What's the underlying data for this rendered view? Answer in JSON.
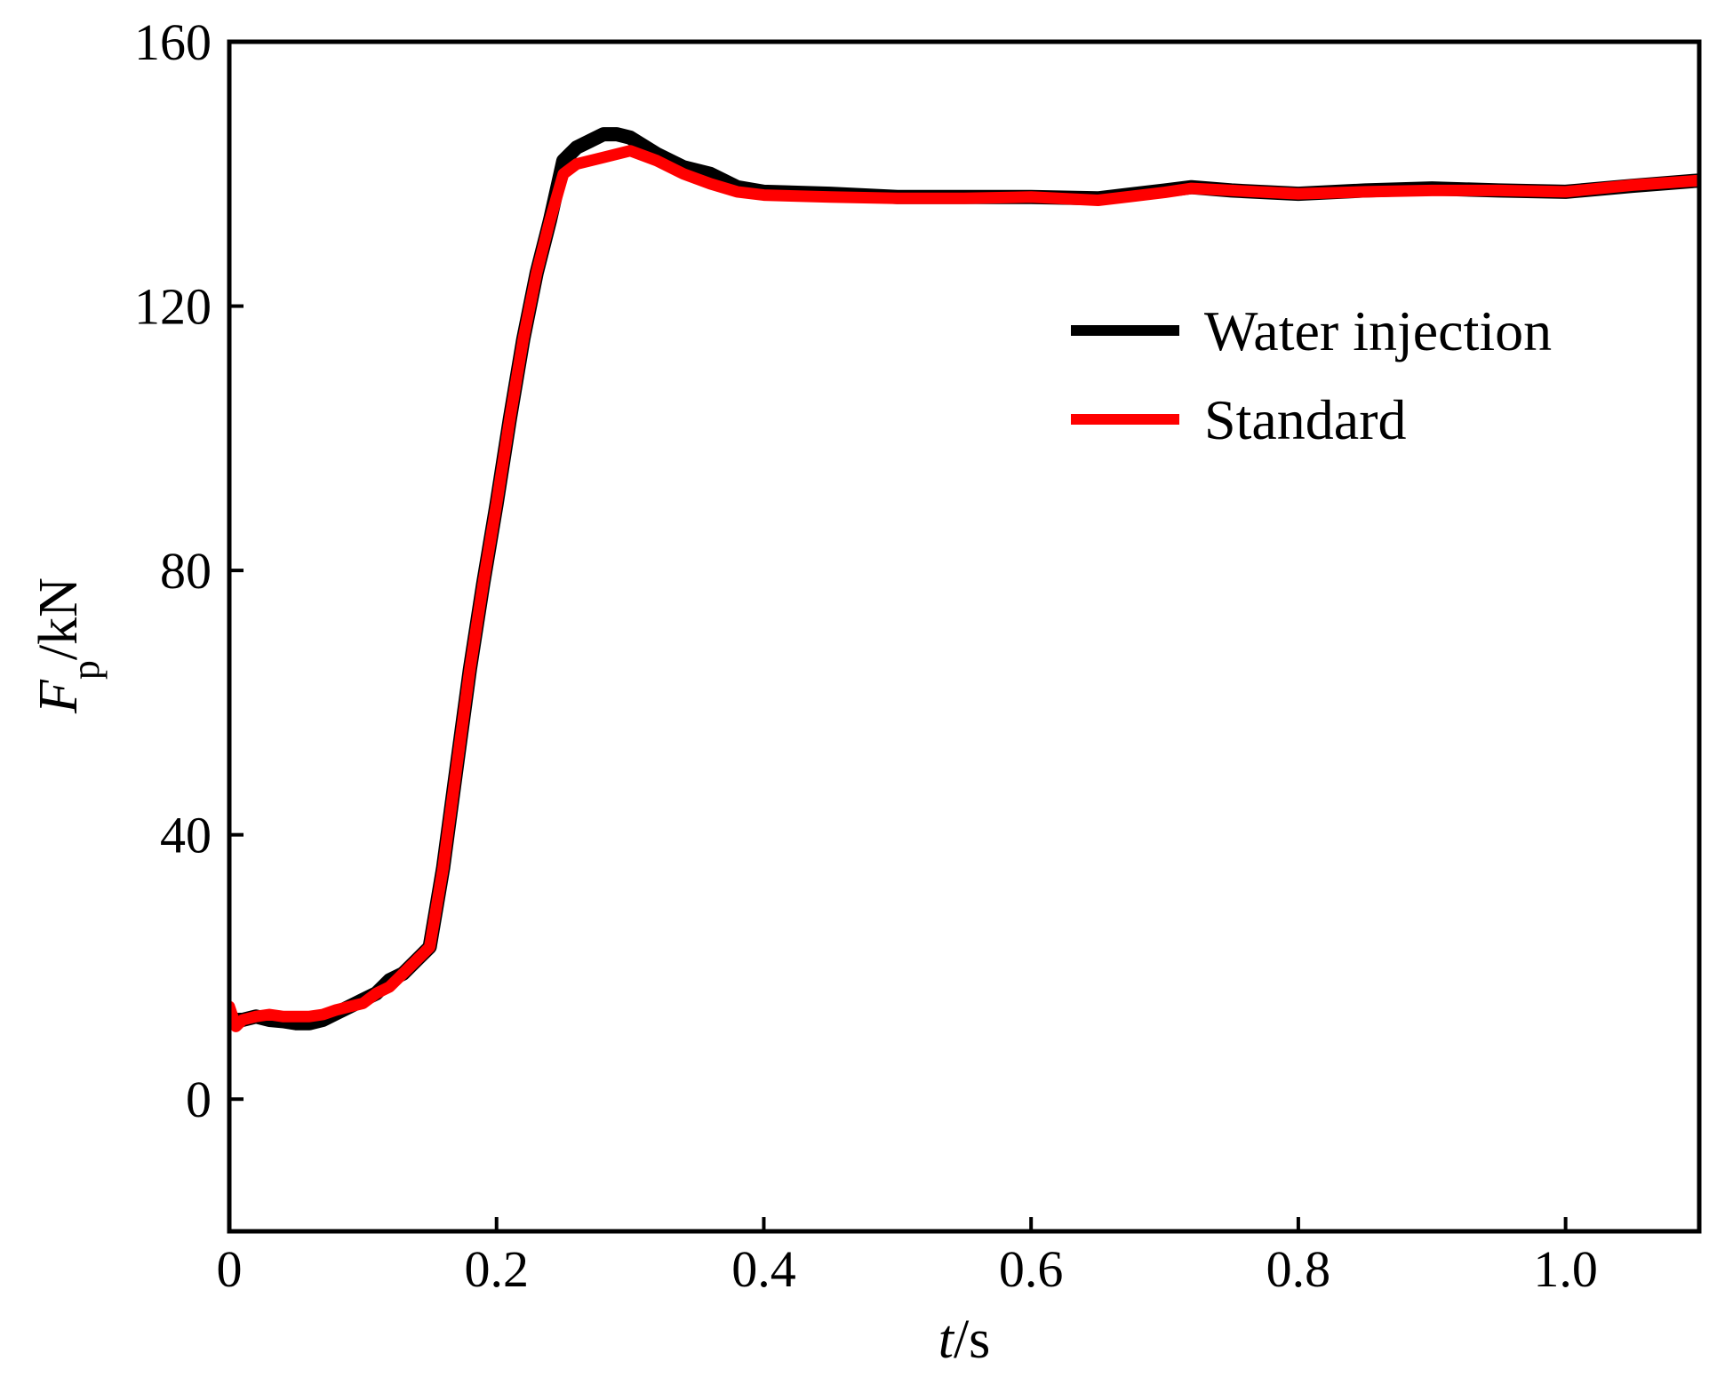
{
  "chart_data": {
    "type": "line",
    "xlabel": {
      "italic": "t",
      "rest": "/s"
    },
    "ylabel": {
      "italic": "F",
      "sub": "p",
      "rest": "/kN"
    },
    "xlim": [
      0,
      1.1
    ],
    "ylim": [
      -20,
      160
    ],
    "xticks": [
      0,
      0.2,
      0.4,
      0.6,
      0.8,
      1.0
    ],
    "xtick_labels": [
      "0",
      "0.2",
      "0.4",
      "0.6",
      "0.8",
      "1.0"
    ],
    "yticks": [
      0,
      40,
      80,
      120,
      160
    ],
    "ytick_labels": [
      "0",
      "40",
      "80",
      "120",
      "160"
    ],
    "legend_position": "upper-right",
    "grid": false,
    "series": [
      {
        "name": "Water injection",
        "color": "#000000",
        "x": [
          0.0,
          0.01,
          0.02,
          0.03,
          0.04,
          0.05,
          0.06,
          0.07,
          0.08,
          0.09,
          0.1,
          0.11,
          0.12,
          0.13,
          0.14,
          0.15,
          0.16,
          0.17,
          0.18,
          0.19,
          0.2,
          0.21,
          0.22,
          0.23,
          0.24,
          0.25,
          0.26,
          0.27,
          0.28,
          0.29,
          0.3,
          0.32,
          0.34,
          0.36,
          0.38,
          0.4,
          0.45,
          0.5,
          0.55,
          0.6,
          0.65,
          0.7,
          0.72,
          0.75,
          0.8,
          0.85,
          0.9,
          0.95,
          1.0,
          1.05,
          1.1
        ],
        "y": [
          12,
          12,
          12.5,
          12,
          11.8,
          11.5,
          11.5,
          12,
          13,
          14,
          15,
          16,
          18,
          19,
          21,
          23,
          35,
          50,
          65,
          78,
          90,
          103,
          115,
          125,
          133,
          142,
          144,
          145,
          146,
          146,
          145.5,
          143,
          141,
          140,
          138,
          137.3,
          137,
          136.5,
          136.5,
          136.5,
          136.3,
          137.5,
          138,
          137.5,
          137,
          137.5,
          137.8,
          137.5,
          137.3,
          138.2,
          139
        ]
      },
      {
        "name": "Standard",
        "color": "#ff0000",
        "x": [
          0.0,
          0.005,
          0.01,
          0.02,
          0.03,
          0.04,
          0.05,
          0.06,
          0.07,
          0.08,
          0.09,
          0.1,
          0.11,
          0.12,
          0.13,
          0.14,
          0.15,
          0.16,
          0.17,
          0.18,
          0.19,
          0.2,
          0.21,
          0.22,
          0.23,
          0.24,
          0.25,
          0.26,
          0.28,
          0.3,
          0.32,
          0.34,
          0.36,
          0.38,
          0.4,
          0.45,
          0.5,
          0.55,
          0.6,
          0.65,
          0.7,
          0.72,
          0.75,
          0.8,
          0.85,
          0.9,
          0.95,
          1.0,
          1.05,
          1.1
        ],
        "y": [
          14,
          11,
          12,
          12.5,
          12.8,
          12.5,
          12.5,
          12.5,
          12.8,
          13.5,
          14,
          14.5,
          16,
          17,
          19,
          21,
          23,
          35,
          50,
          65,
          78,
          90,
          103,
          115,
          125,
          133,
          140,
          141.5,
          142.5,
          143.5,
          142,
          140,
          138.5,
          137.3,
          136.8,
          136.5,
          136.3,
          136.3,
          136.5,
          136,
          137.2,
          137.8,
          137.5,
          137,
          137.3,
          137.5,
          137.5,
          137.3,
          138.3,
          139
        ]
      }
    ]
  }
}
